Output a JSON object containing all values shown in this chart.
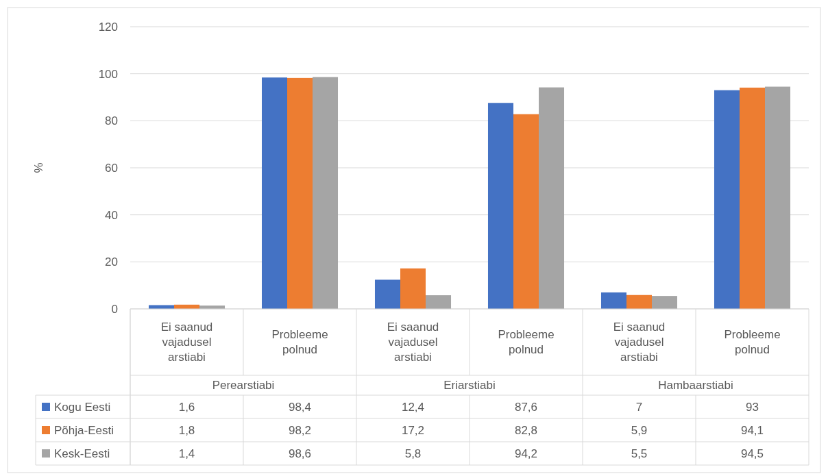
{
  "chart_data": {
    "type": "bar",
    "ylabel": "%",
    "categories": [
      "Ei saanud vajadusel arstiabi",
      "Probleeme polnud",
      "Ei saanud vajadusel arstiabi",
      "Probleeme polnud",
      "Ei saanud vajadusel arstiabi",
      "Probleeme polnud"
    ],
    "annotations": [
      "Perearstiabi",
      "Eriarstiabi",
      "Hambaarstiabi"
    ],
    "series": [
      {
        "name": "Kogu Eesti",
        "color": "#4472c4",
        "values": [
          1.6,
          98.4,
          12.4,
          87.6,
          7,
          93
        ],
        "value_labels": [
          "1,6",
          "98,4",
          "12,4",
          "87,6",
          "7",
          "93"
        ]
      },
      {
        "name": "Põhja-Eesti",
        "color": "#ed7d31",
        "values": [
          1.8,
          98.2,
          17.2,
          82.8,
          5.9,
          94.1
        ],
        "value_labels": [
          "1,8",
          "98,2",
          "17,2",
          "82,8",
          "5,9",
          "94,1"
        ]
      },
      {
        "name": "Kesk-Eesti",
        "color": "#a5a5a5",
        "values": [
          1.4,
          98.6,
          5.8,
          94.2,
          5.5,
          94.5
        ],
        "value_labels": [
          "1,4",
          "98,6",
          "5,8",
          "94,2",
          "5,5",
          "94,5"
        ]
      }
    ],
    "ylim": [
      0,
      120
    ],
    "yticks": [
      0,
      20,
      40,
      60,
      80,
      100,
      120
    ],
    "grid": "y",
    "legend": "bottom"
  }
}
